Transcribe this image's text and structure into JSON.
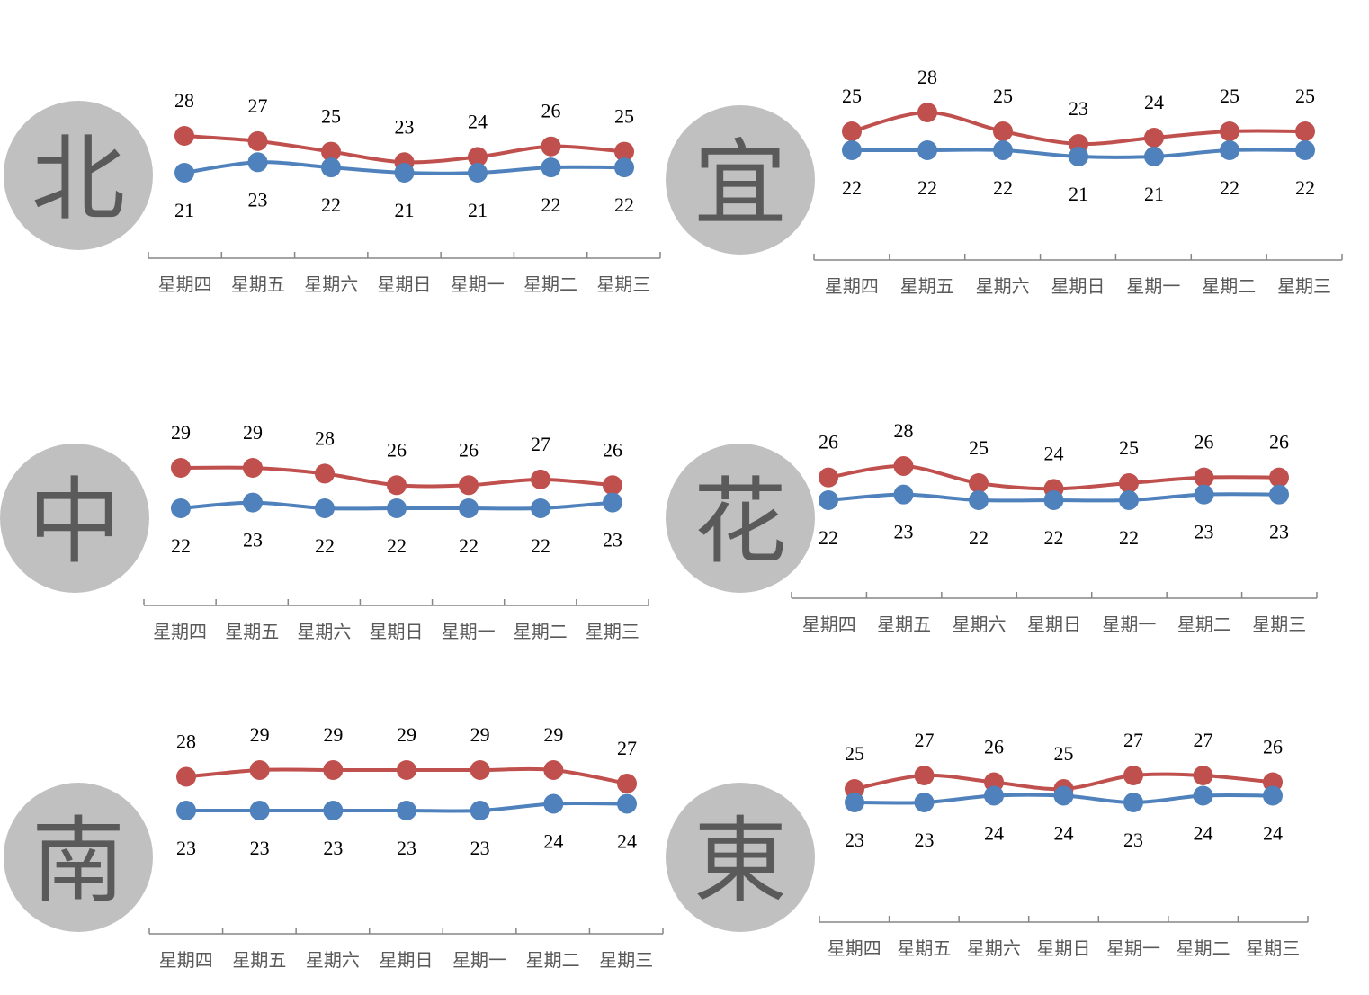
{
  "colors": {
    "high": "#c0504d",
    "low": "#4f81bd",
    "badge": "#c0c0c0",
    "axis": "#868686"
  },
  "categories": [
    "星期四",
    "星期五",
    "星期六",
    "星期日",
    "星期一",
    "星期二",
    "星期三"
  ],
  "chart_data": [
    {
      "type": "line",
      "region": "北",
      "categories": [
        "星期四",
        "星期五",
        "星期六",
        "星期日",
        "星期一",
        "星期二",
        "星期三"
      ],
      "series": [
        {
          "values": [
            28,
            27,
            25,
            23,
            24,
            26,
            25
          ]
        },
        {
          "values": [
            21,
            23,
            22,
            21,
            21,
            22,
            22
          ]
        }
      ]
    },
    {
      "type": "line",
      "region": "宜",
      "categories": [
        "星期四",
        "星期五",
        "星期六",
        "星期日",
        "星期一",
        "星期二",
        "星期三"
      ],
      "series": [
        {
          "values": [
            25,
            28,
            25,
            23,
            24,
            25,
            25
          ]
        },
        {
          "values": [
            22,
            22,
            22,
            21,
            21,
            22,
            22
          ]
        }
      ]
    },
    {
      "type": "line",
      "region": "中",
      "categories": [
        "星期四",
        "星期五",
        "星期六",
        "星期日",
        "星期一",
        "星期二",
        "星期三"
      ],
      "series": [
        {
          "values": [
            29,
            29,
            28,
            26,
            26,
            27,
            26
          ]
        },
        {
          "values": [
            22,
            23,
            22,
            22,
            22,
            22,
            23
          ]
        }
      ]
    },
    {
      "type": "line",
      "region": "花",
      "categories": [
        "星期四",
        "星期五",
        "星期六",
        "星期日",
        "星期一",
        "星期二",
        "星期三"
      ],
      "series": [
        {
          "values": [
            26,
            28,
            25,
            24,
            25,
            26,
            26
          ]
        },
        {
          "values": [
            22,
            23,
            22,
            22,
            22,
            23,
            23
          ]
        }
      ]
    },
    {
      "type": "line",
      "region": "南",
      "categories": [
        "星期四",
        "星期五",
        "星期六",
        "星期日",
        "星期一",
        "星期二",
        "星期三"
      ],
      "series": [
        {
          "values": [
            28,
            29,
            29,
            29,
            29,
            29,
            27
          ]
        },
        {
          "values": [
            23,
            23,
            23,
            23,
            23,
            24,
            24
          ]
        }
      ]
    },
    {
      "type": "line",
      "region": "東",
      "categories": [
        "星期四",
        "星期五",
        "星期六",
        "星期日",
        "星期一",
        "星期二",
        "星期三"
      ],
      "series": [
        {
          "values": [
            25,
            27,
            26,
            25,
            27,
            27,
            26
          ]
        },
        {
          "values": [
            23,
            23,
            24,
            24,
            23,
            24,
            24
          ]
        }
      ]
    }
  ]
}
